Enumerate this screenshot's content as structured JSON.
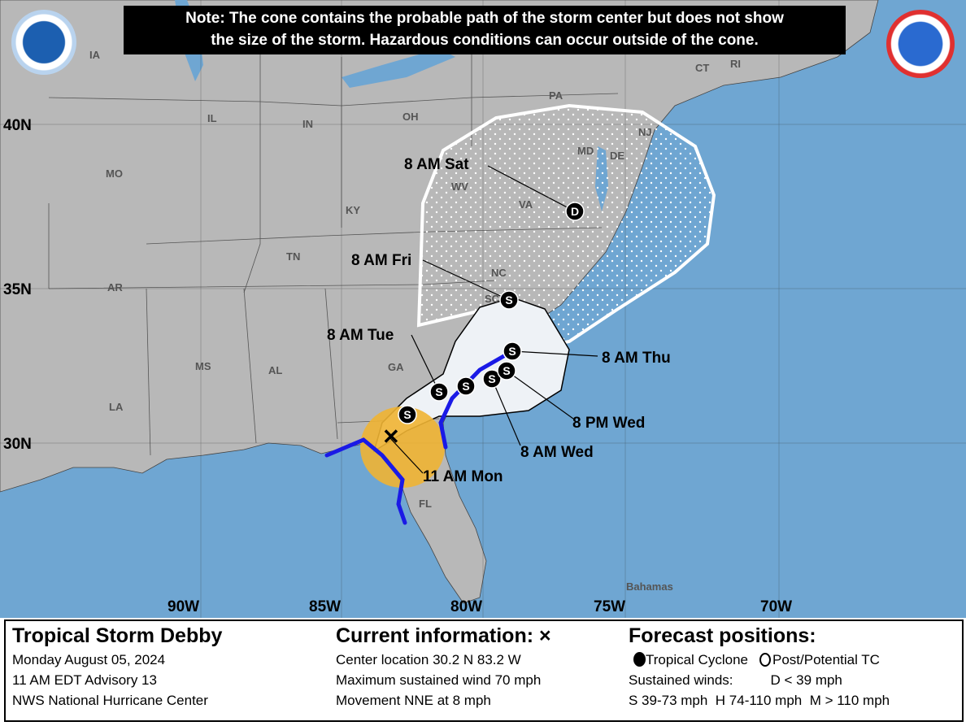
{
  "note": {
    "line1": "Note: The cone contains the probable path of the storm center but does not show",
    "line2": "the size of the storm. Hazardous conditions can occur outside of the cone."
  },
  "logos": {
    "left": "NOAA",
    "right": "NATIONAL WEATHER SERVICE"
  },
  "colors": {
    "ocean": "#6fa6d2",
    "land": "#b8b8b8",
    "warning": "#1a1ae6",
    "watch_area": "#f0b433",
    "cone": "#f1f1f1"
  },
  "axes": {
    "lat": [
      "40N",
      "35N",
      "30N"
    ],
    "lon": [
      "90W",
      "85W",
      "80W",
      "75W",
      "70W"
    ]
  },
  "states": [
    "IA",
    "IL",
    "IN",
    "OH",
    "PA",
    "MO",
    "KY",
    "WV",
    "VA",
    "MD",
    "DE",
    "NJ",
    "CT",
    "RI",
    "TN",
    "NC",
    "AR",
    "SC",
    "GA",
    "MS",
    "AL",
    "LA",
    "FL",
    "Bahamas"
  ],
  "forecast_points": [
    {
      "label": "11 AM Mon",
      "symbol": "X"
    },
    {
      "label": "",
      "symbol": "S"
    },
    {
      "label": "8 AM Tue",
      "symbol": "S"
    },
    {
      "label": "",
      "symbol": "S"
    },
    {
      "label": "8 AM Wed",
      "symbol": "S"
    },
    {
      "label": "8 PM Wed",
      "symbol": "S"
    },
    {
      "label": "8 AM Thu",
      "symbol": "S"
    },
    {
      "label": "8 AM Fri",
      "symbol": "S"
    },
    {
      "label": "8 AM Sat",
      "symbol": "D"
    }
  ],
  "panel": {
    "storm": {
      "title": "Tropical Storm Debby",
      "date": "Monday August 05, 2024",
      "advisory": "11 AM EDT Advisory 13",
      "center": "NWS National Hurricane Center"
    },
    "current": {
      "title": "Current information: ",
      "mark": "×",
      "location": "Center location 30.2 N 83.2 W",
      "wind": "Maximum sustained wind 70 mph",
      "movement": "Movement NNE at 8 mph"
    },
    "forecast": {
      "title": "Forecast positions:",
      "tc": "Tropical Cyclone",
      "post": "Post/Potential TC",
      "winds": "Sustained winds:",
      "d": "D < 39 mph",
      "scale": "S 39-73 mph  H 74-110 mph  M > 110 mph"
    }
  }
}
